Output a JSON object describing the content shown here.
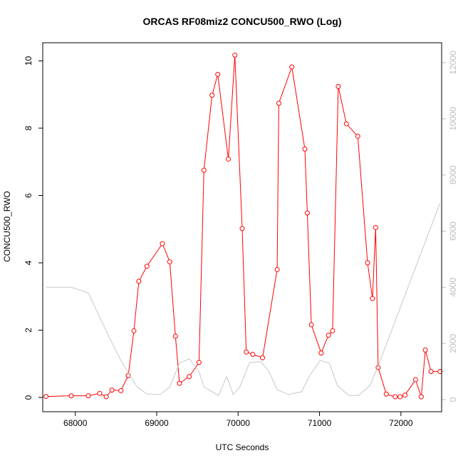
{
  "chart_data": {
    "type": "line",
    "title": "ORCAS RF08miz2 CONCU500_RWO (Log)",
    "xlabel": "UTC Seconds",
    "ylabel": "CONCU500_RWO",
    "xlim": [
      67600,
      72500
    ],
    "ylim": [
      0,
      10.2
    ],
    "y2lim": [
      0,
      12000
    ],
    "x_ticks": [
      68000,
      69000,
      70000,
      71000,
      72000
    ],
    "y_ticks": [
      0,
      2,
      4,
      6,
      8,
      10
    ],
    "y2_ticks": [
      0,
      2000,
      4000,
      6000,
      8000,
      10000,
      12000
    ],
    "series": [
      {
        "axis": "left",
        "color": "#ff0000",
        "marker": "open-circle",
        "x": [
          67640,
          67950,
          68160,
          68300,
          68380,
          68450,
          68560,
          68650,
          68720,
          68780,
          68880,
          69070,
          69160,
          69230,
          69280,
          69400,
          69520,
          69580,
          69680,
          69750,
          69880,
          69960,
          70050,
          70100,
          70180,
          70300,
          70480,
          70500,
          70660,
          70820,
          70850,
          70900,
          71020,
          71110,
          71160,
          71230,
          71330,
          71470,
          71590,
          71650,
          71690,
          71720,
          71820,
          71930,
          71990,
          72050,
          72180,
          72250,
          72300,
          72370,
          72480
        ],
        "y": [
          0.03,
          0.05,
          0.05,
          0.12,
          0.02,
          0.22,
          0.2,
          0.65,
          1.98,
          3.45,
          3.9,
          4.57,
          4.03,
          1.82,
          0.42,
          0.62,
          1.04,
          6.75,
          8.98,
          9.6,
          7.08,
          10.17,
          5.02,
          1.35,
          1.28,
          1.18,
          3.8,
          8.74,
          9.82,
          7.38,
          5.48,
          2.16,
          1.32,
          1.85,
          1.98,
          9.24,
          8.13,
          7.76,
          4.0,
          2.94,
          5.05,
          0.89,
          0.1,
          0.02,
          0.02,
          0.07,
          0.53,
          0.02,
          1.41,
          0.77,
          0.77
        ]
      },
      {
        "axis": "right",
        "color": "#c8c8c8",
        "x": [
          67640,
          67950,
          68160,
          68420,
          68560,
          68640,
          68760,
          68880,
          69040,
          69160,
          69280,
          69400,
          69520,
          69580,
          69660,
          69760,
          69860,
          69940,
          70020,
          70140,
          70280,
          70380,
          70480,
          70620,
          70780,
          70880,
          71010,
          71120,
          71220,
          71360,
          71480,
          71620,
          71720,
          72480
        ],
        "y": [
          4000,
          4000,
          3800,
          2200,
          1400,
          1000,
          450,
          200,
          180,
          450,
          1300,
          1450,
          1000,
          450,
          320,
          150,
          820,
          180,
          450,
          1320,
          1350,
          1000,
          350,
          180,
          280,
          850,
          1400,
          1300,
          500,
          150,
          150,
          500,
          1200,
          7000
        ]
      }
    ]
  }
}
